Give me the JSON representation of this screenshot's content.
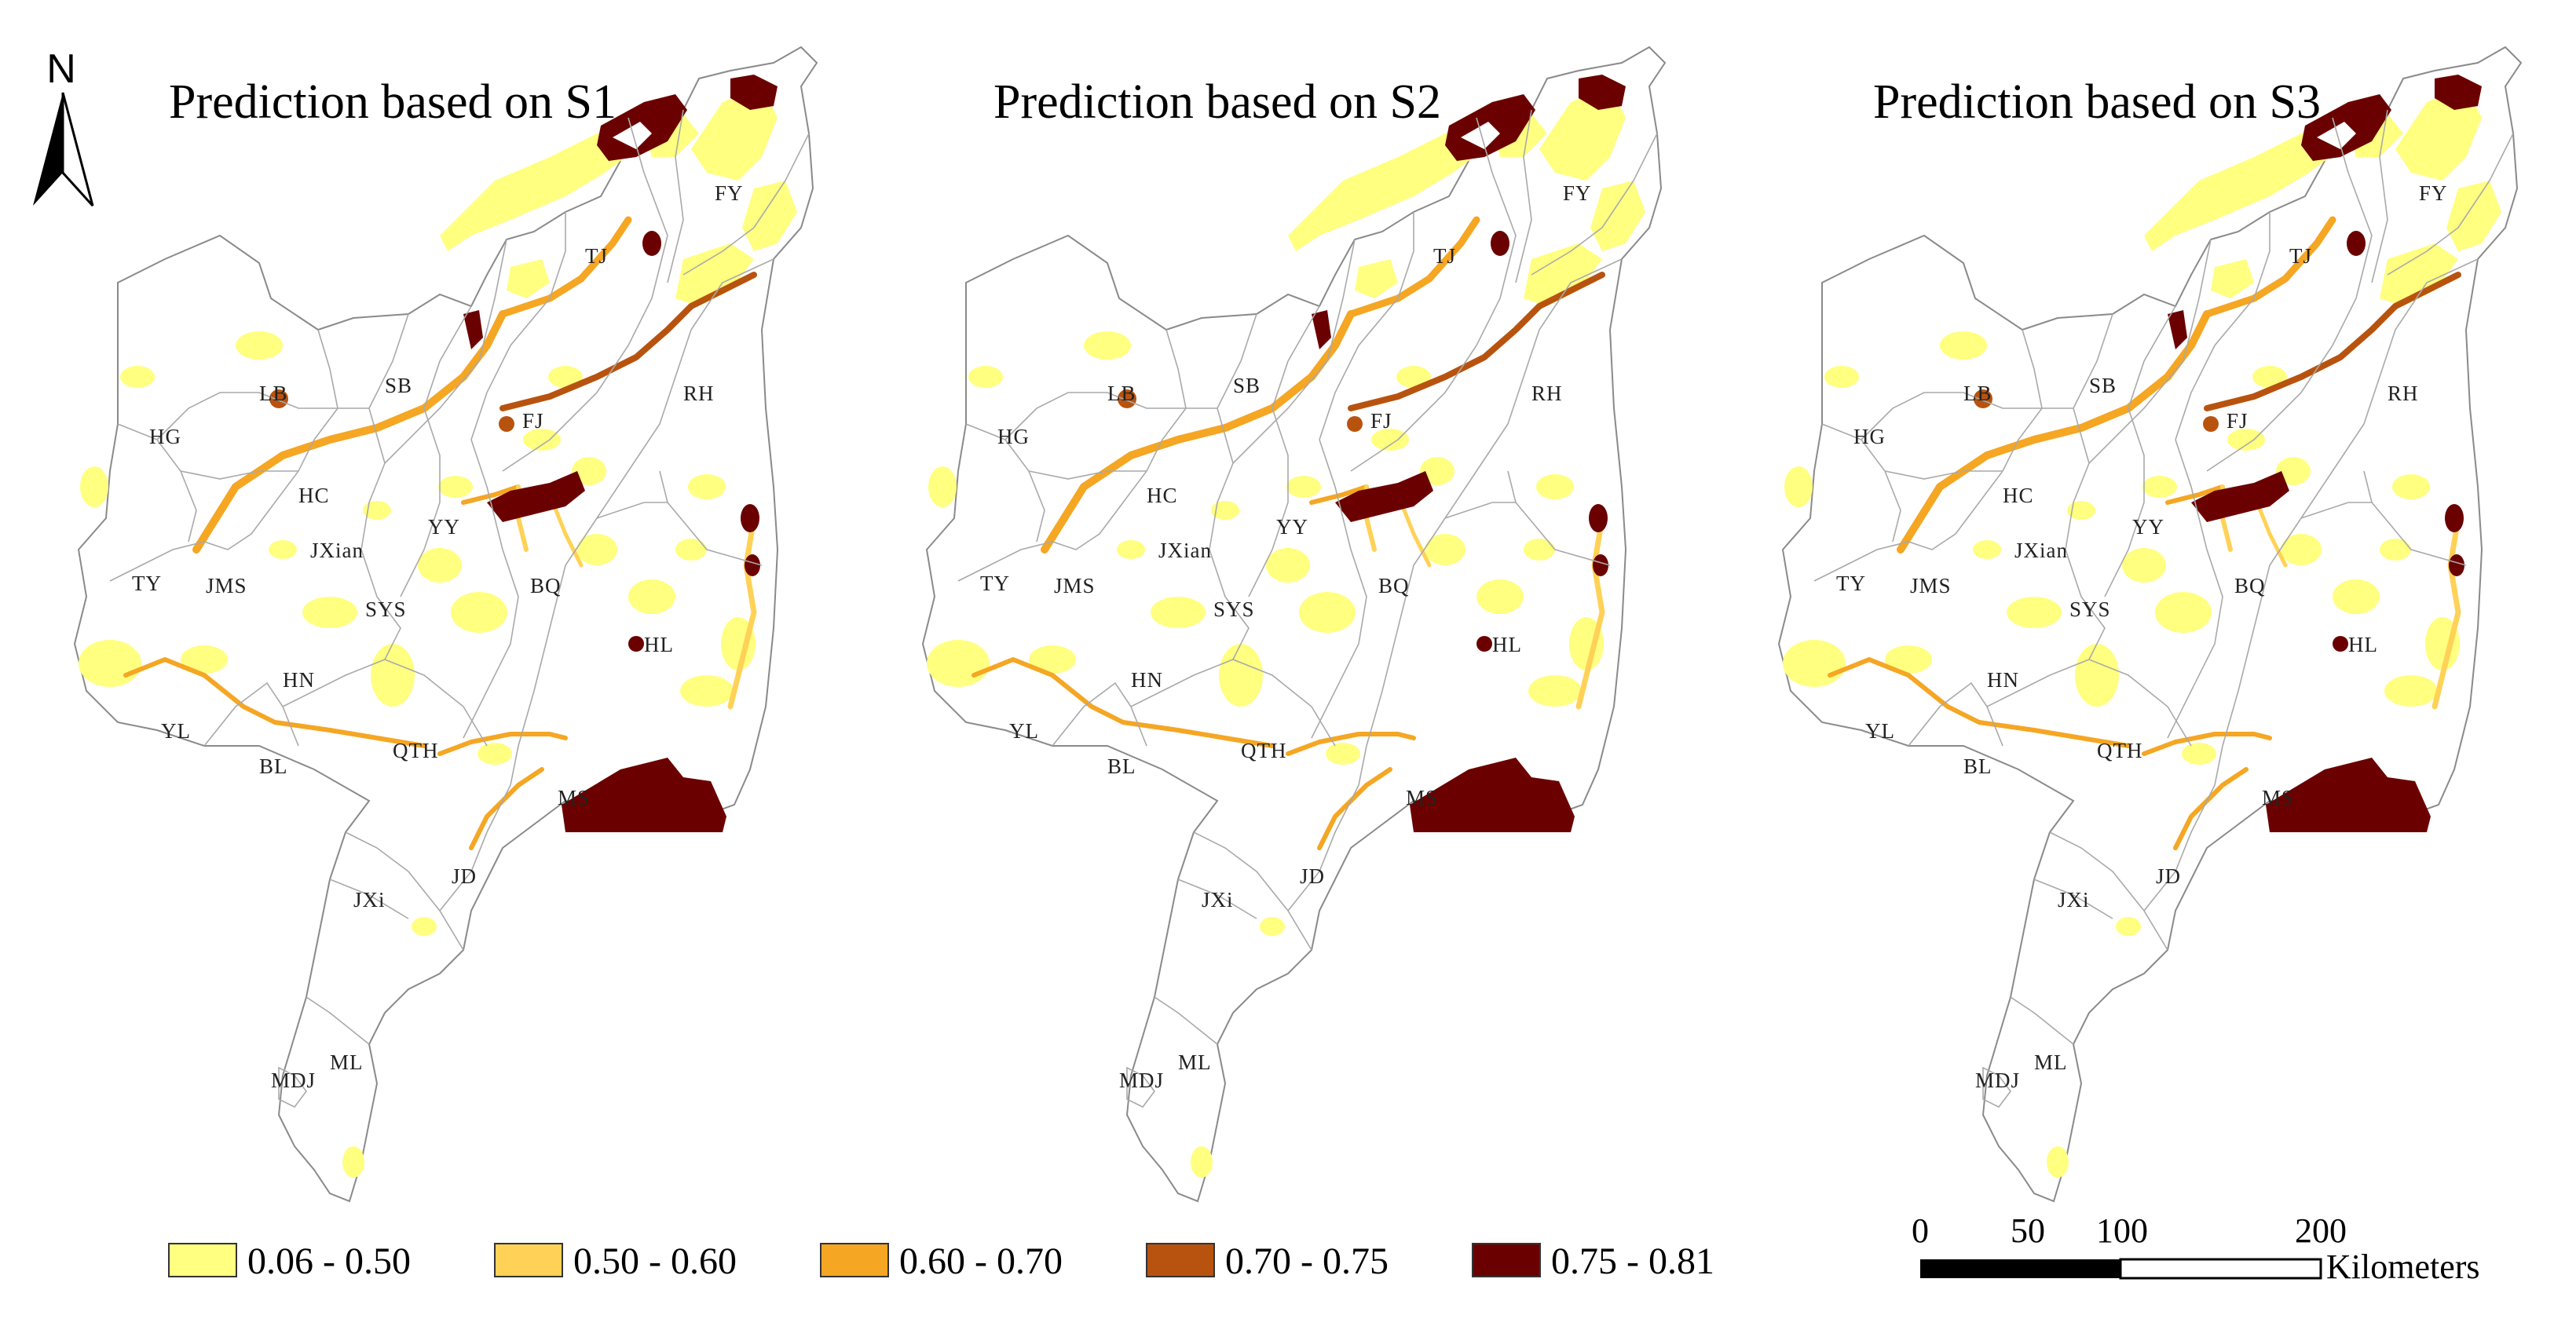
{
  "north": {
    "letter": "N",
    "icon": "north-arrow-icon"
  },
  "panels": [
    {
      "title": "Prediction based on S1"
    },
    {
      "title": "Prediction based on S2"
    },
    {
      "title": "Prediction based on S3"
    }
  ],
  "regions": [
    "FY",
    "TJ",
    "LB",
    "SB",
    "FJ",
    "RH",
    "HG",
    "HC",
    "JXian",
    "YY",
    "TY",
    "JMS",
    "SYS",
    "BQ",
    "HL",
    "HN",
    "QTH",
    "YL",
    "BL",
    "MS",
    "JD",
    "JXi",
    "MDJ",
    "ML"
  ],
  "legend": {
    "items": [
      {
        "label": "0.06 - 0.50",
        "color": "#ffff80"
      },
      {
        "label": "0.50 - 0.60",
        "color": "#ffd257"
      },
      {
        "label": "0.60 - 0.70",
        "color": "#f5a623"
      },
      {
        "label": "0.70 - 0.75",
        "color": "#b8530f"
      },
      {
        "label": "0.75 - 0.81",
        "color": "#6b0000"
      }
    ]
  },
  "scale_bar": {
    "ticks": [
      "0",
      "50",
      "100",
      "200"
    ],
    "unit": "Kilometers"
  }
}
